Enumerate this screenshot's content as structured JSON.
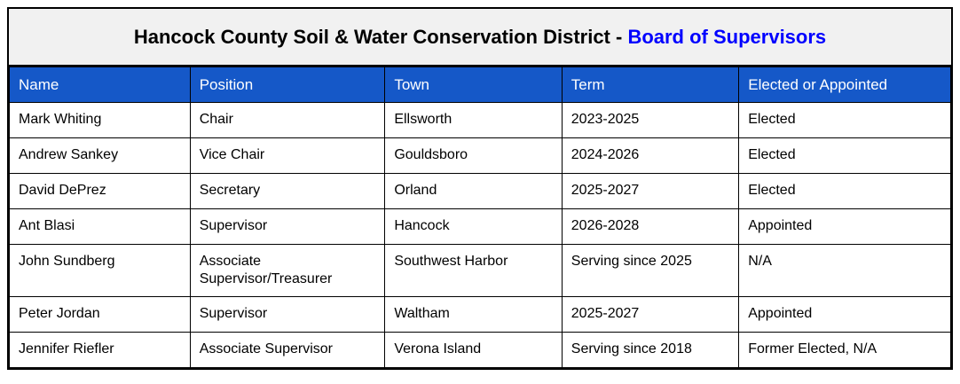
{
  "title": {
    "main": "Hancock County Soil & Water Conservation District - ",
    "highlight": "Board of Supervisors"
  },
  "colors": {
    "header_bg": "#1558c8",
    "title_accent": "#0000ff",
    "title_bg": "#f1f1f1",
    "border_color": "#000000",
    "header_text": "#ffffff",
    "body_text": "#000000"
  },
  "table": {
    "columns": [
      "Name",
      "Position",
      "Town",
      "Term",
      "Elected or Appointed"
    ],
    "rows": [
      [
        "Mark Whiting",
        "Chair",
        "Ellsworth",
        "2023-2025",
        "Elected"
      ],
      [
        "Andrew Sankey",
        "Vice Chair",
        "Gouldsboro",
        "2024-2026",
        "Elected"
      ],
      [
        "David DePrez",
        "Secretary",
        "Orland",
        "2025-2027",
        "Elected"
      ],
      [
        "Ant Blasi",
        "Supervisor",
        "Hancock",
        "2026-2028",
        "Appointed"
      ],
      [
        "John Sundberg",
        "Associate\nSupervisor/Treasurer",
        "Southwest Harbor",
        "Serving since 2025",
        "N/A"
      ],
      [
        "Peter Jordan",
        "Supervisor",
        "Waltham",
        "2025-2027",
        "Appointed"
      ],
      [
        "Jennifer Riefler",
        "Associate Supervisor",
        "Verona Island",
        "Serving since 2018",
        "Former Elected, N/A"
      ]
    ]
  }
}
